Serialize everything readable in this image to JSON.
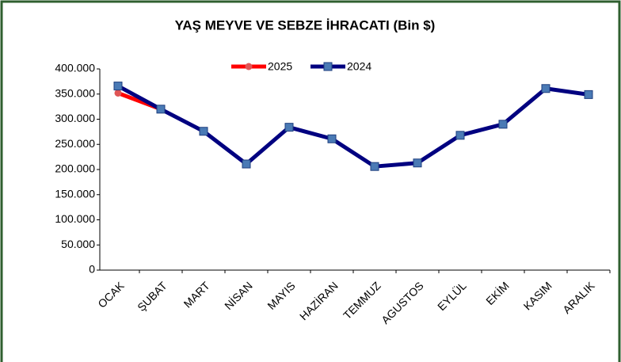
{
  "chart_data": {
    "type": "line",
    "title": "YAŞ MEYVE  VE SEBZE İHRACATI  (Bin $)",
    "categories": [
      "OCAK",
      "ŞUBAT",
      "MART",
      "NİSAN",
      "MAYIS",
      "HAZİRAN",
      "TEMMUZ",
      "AGUSTOS",
      "EYLÜL",
      "EKİM",
      "KASIM",
      "ARALIK"
    ],
    "series": [
      {
        "name": "2025",
        "color": "#ff0000",
        "marker_color": "#e05555",
        "marker": "circle",
        "values": [
          352000,
          320000,
          null,
          null,
          null,
          null,
          null,
          null,
          null,
          null,
          null,
          null
        ]
      },
      {
        "name": "2024",
        "color": "#000080",
        "marker_color": "#4a7ab5",
        "marker": "square",
        "values": [
          366000,
          320000,
          276000,
          211000,
          284000,
          261000,
          206000,
          213000,
          268000,
          290000,
          361000,
          349000
        ]
      }
    ],
    "ylim": [
      0,
      400000
    ],
    "yticks": [
      0,
      {
        "value": 50000,
        "label": "50.000"
      },
      {
        "value": 100000,
        "label": "100.000"
      },
      {
        "value": 150000,
        "label": "150.000"
      },
      {
        "value": 200000,
        "label": "200.000"
      },
      {
        "value": 250000,
        "label": "250.000"
      },
      {
        "value": 300000,
        "label": "300.000"
      },
      {
        "value": 350000,
        "label": "350.000"
      },
      {
        "value": 400000,
        "label": "400.000"
      }
    ],
    "grid": false,
    "legend": "top"
  }
}
